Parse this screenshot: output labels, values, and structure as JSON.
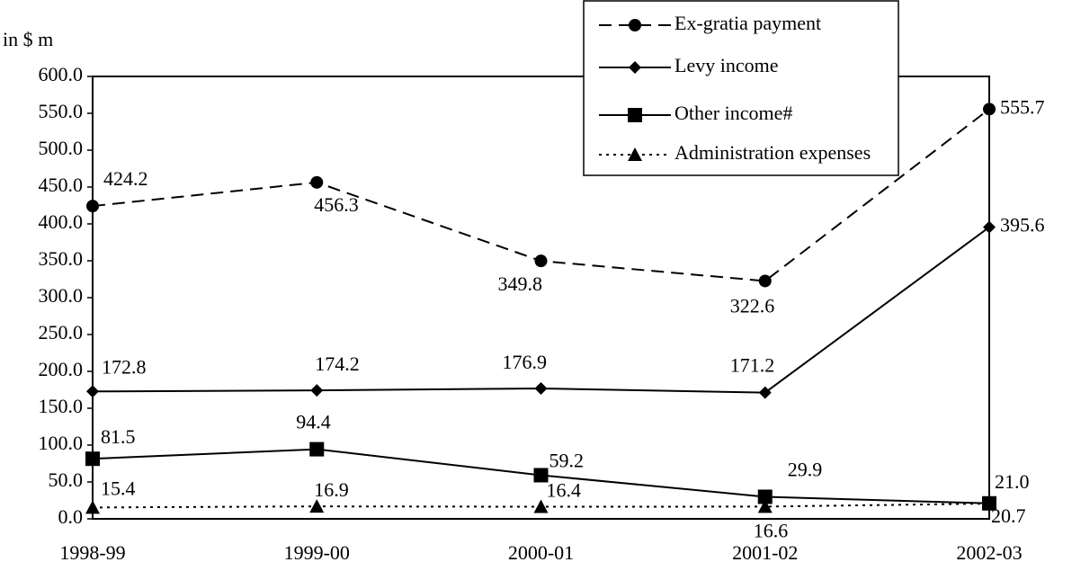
{
  "chart_data": {
    "type": "line",
    "y_label": "in $ m",
    "categories": [
      "1998-99",
      "1999-00",
      "2000-01",
      "2001-02",
      "2002-03"
    ],
    "ylim": [
      0,
      600
    ],
    "yticks": [
      {
        "value": 0,
        "label": "0.0"
      },
      {
        "value": 50,
        "label": "50.0"
      },
      {
        "value": 100,
        "label": "100.0"
      },
      {
        "value": 150,
        "label": "150.0"
      },
      {
        "value": 200,
        "label": "200.0"
      },
      {
        "value": 250,
        "label": "250.0"
      },
      {
        "value": 300,
        "label": "300.0"
      },
      {
        "value": 350,
        "label": "350.0"
      },
      {
        "value": 400,
        "label": "400.0"
      },
      {
        "value": 450,
        "label": "450.0"
      },
      {
        "value": 500,
        "label": "500.0"
      },
      {
        "value": 550,
        "label": "550.0"
      },
      {
        "value": 600,
        "label": "600.0"
      }
    ],
    "grid": false,
    "legend": "top-right",
    "series": [
      {
        "name": "Ex-gratia payment",
        "color": "#000000",
        "dash": "dashed",
        "marker": "circle",
        "values": [
          424.2,
          456.3,
          349.8,
          322.6,
          555.7
        ]
      },
      {
        "name": "Levy income",
        "color": "#000000",
        "dash": "solid",
        "marker": "diamond",
        "values": [
          172.8,
          174.2,
          176.9,
          171.2,
          395.6
        ]
      },
      {
        "name": "Other income#",
        "color": "#000000",
        "dash": "solid",
        "marker": "square",
        "values": [
          81.5,
          94.4,
          59.2,
          29.9,
          21
        ],
        "value_labels": [
          "81.5",
          "94.4",
          "59.2",
          "29.9",
          "21.0"
        ]
      },
      {
        "name": "Administration expenses",
        "color": "#000000",
        "dash": "dotted",
        "marker": "triangle",
        "values": [
          15.4,
          16.9,
          16.4,
          16.6,
          20.7
        ]
      }
    ]
  }
}
